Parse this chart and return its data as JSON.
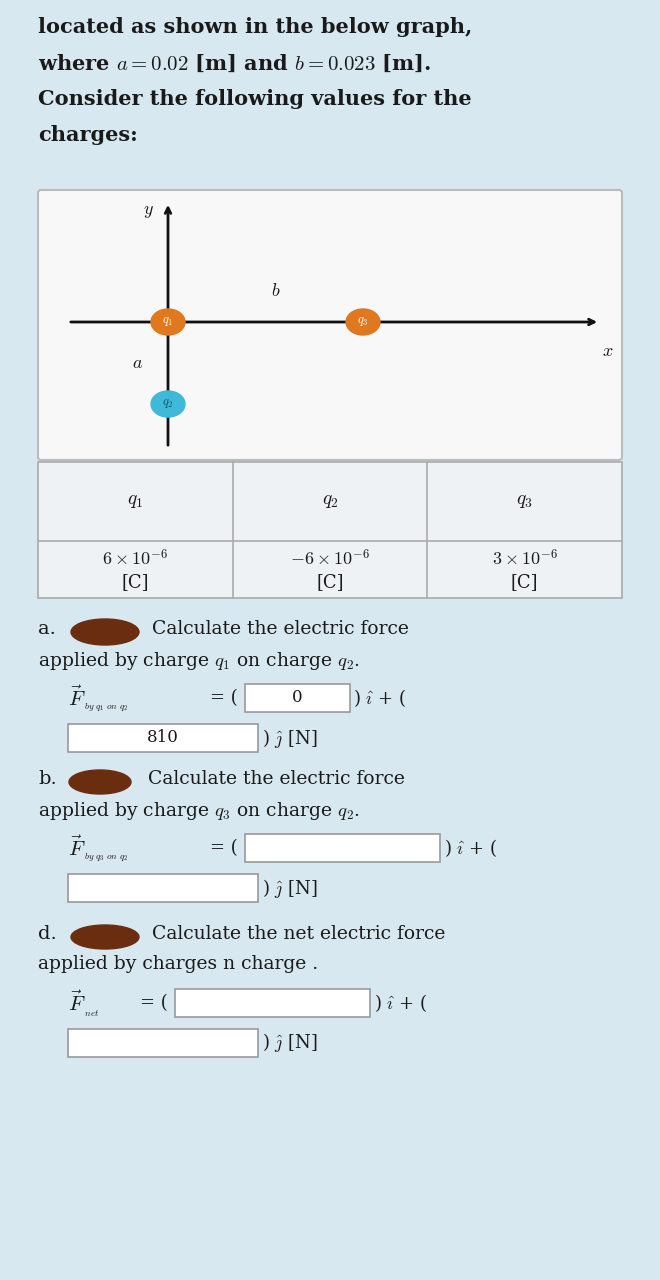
{
  "bg_color": "#d8e8f0",
  "graph_bg": "#ffffff",
  "header_lines": [
    "located as shown in the below graph,",
    "where $a = 0.02$ [m] and $b = 0.023$ [m].",
    "Consider the following values for the",
    "charges:"
  ],
  "table_headers": [
    "$q_1$",
    "$q_2$",
    "$q_3$"
  ],
  "blob_color": "#6b2d10",
  "q1_color": "#e07820",
  "q2_color": "#40b8d8",
  "q3_color": "#e07820",
  "axis_color": "#111111",
  "table_border": "#aaaaaa",
  "text_color": "#1a1a1a",
  "box_border": "#999999",
  "box_fill": "#ffffff"
}
